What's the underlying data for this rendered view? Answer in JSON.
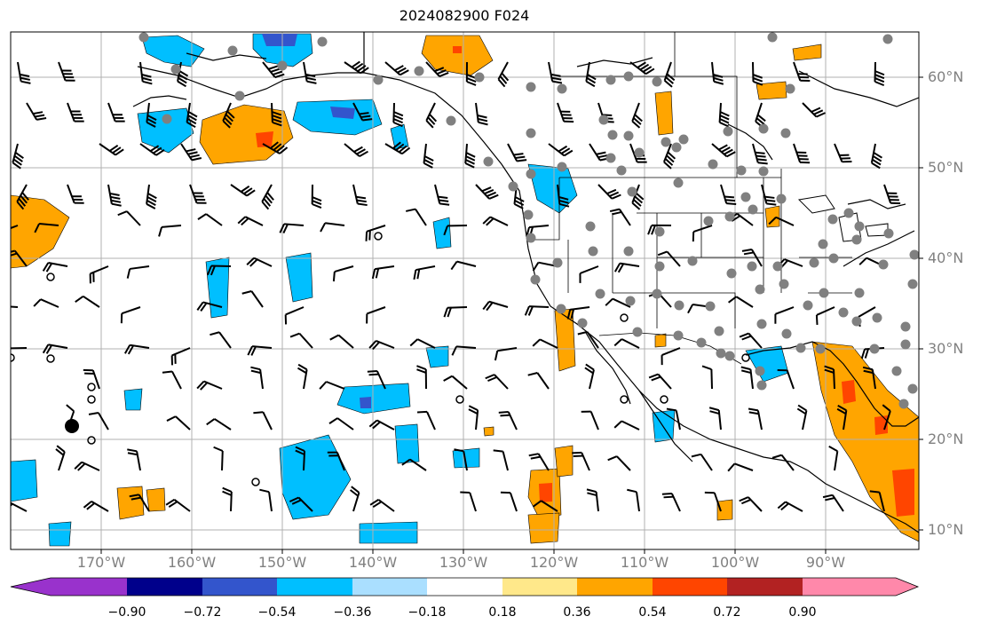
{
  "title": "2024082900 F024",
  "colors": {
    "land_outline": "#000000",
    "grid": "#b0b0b0",
    "station_marker": "#808080",
    "negative_shading": "#00bfff",
    "positive_shading": "#ffa500"
  },
  "lon_labels": [
    "170°W",
    "160°W",
    "150°W",
    "140°W",
    "130°W",
    "120°W",
    "110°W",
    "100°W",
    "90°W"
  ],
  "lat_labels": [
    "60°N",
    "50°N",
    "40°N",
    "30°N",
    "20°N",
    "10°N"
  ],
  "colorbar": {
    "colors": [
      "#9932cc",
      "#00008b",
      "#3355cc",
      "#00bfff",
      "#aadfff",
      "#ffffff",
      "#ffe88a",
      "#ffa500",
      "#ff4500",
      "#b22222",
      "#ff88aa"
    ],
    "tick_labels": [
      "−0.90",
      "−0.72",
      "−0.54",
      "−0.36",
      "−0.18",
      "0.18",
      "0.36",
      "0.54",
      "0.72",
      "0.90"
    ]
  }
}
